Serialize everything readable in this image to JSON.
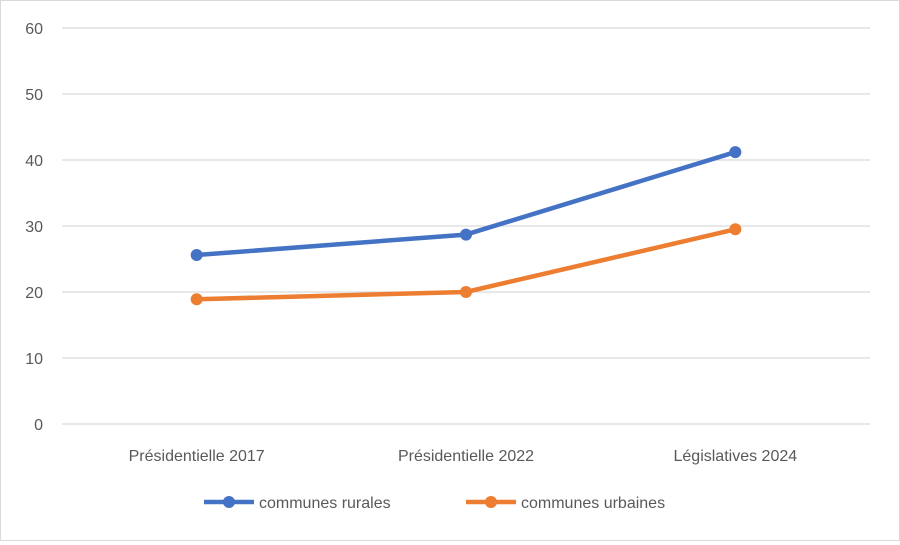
{
  "chart_data": {
    "type": "line",
    "title": "",
    "xlabel": "",
    "ylabel": "",
    "categories": [
      "Présidentielle 2017",
      "Présidentielle 2022",
      "Législatives 2024"
    ],
    "ylim": [
      0,
      60
    ],
    "yticks": [
      0,
      10,
      20,
      30,
      40,
      50,
      60
    ],
    "grid": true,
    "legend_position": "bottom",
    "series": [
      {
        "name": "communes rurales",
        "color": "#4472C4",
        "values": [
          25.6,
          28.7,
          41.2
        ]
      },
      {
        "name": "communes urbaines",
        "color": "#ED7D31",
        "values": [
          18.9,
          20.0,
          29.5
        ]
      }
    ]
  }
}
